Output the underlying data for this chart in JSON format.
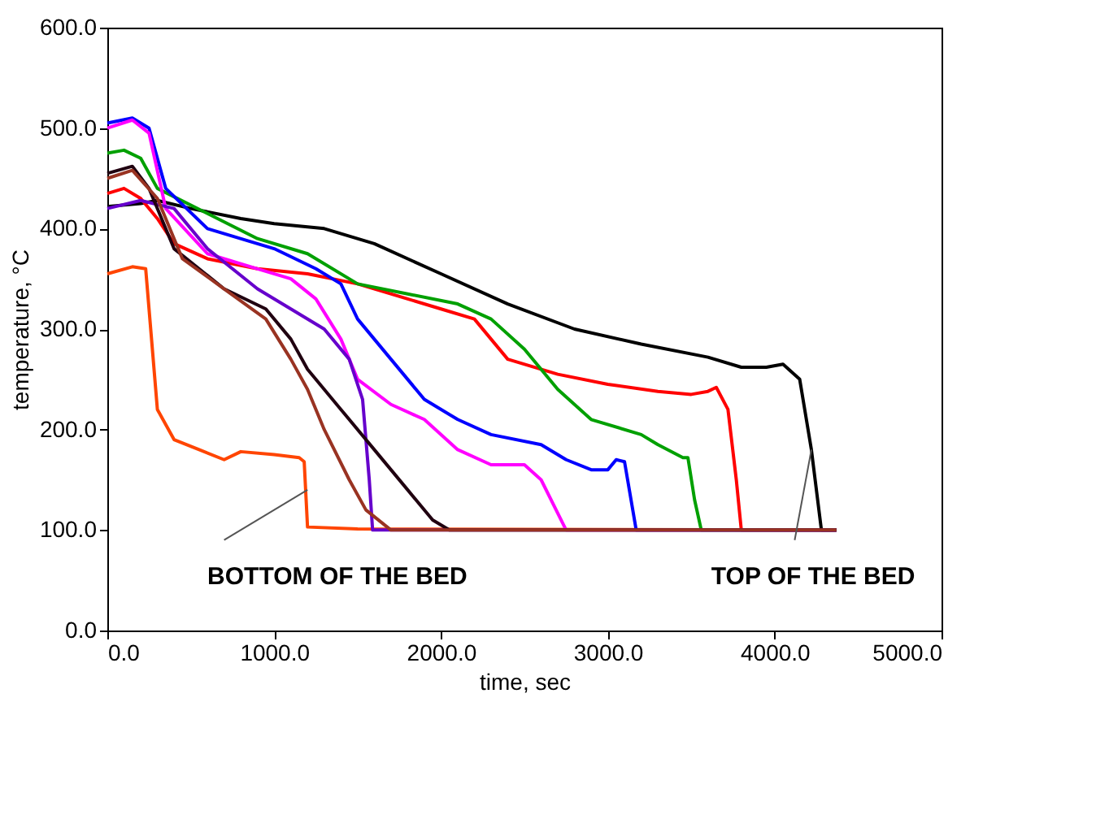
{
  "chart_data": {
    "type": "line",
    "xlabel": "time, sec",
    "ylabel": "temperature, °C",
    "xlim": [
      0,
      5000
    ],
    "ylim": [
      0,
      600
    ],
    "xticks": [
      {
        "value": 0,
        "label": "0.0"
      },
      {
        "value": 1000,
        "label": "1000.0"
      },
      {
        "value": 2000,
        "label": "2000.0"
      },
      {
        "value": 3000,
        "label": "3000.0"
      },
      {
        "value": 4000,
        "label": "4000.0"
      },
      {
        "value": 5000,
        "label": "5000.0"
      }
    ],
    "yticks": [
      {
        "value": 0,
        "label": "0.0"
      },
      {
        "value": 100,
        "label": "100.0"
      },
      {
        "value": 200,
        "label": "200.0"
      },
      {
        "value": 300,
        "label": "300.0"
      },
      {
        "value": 400,
        "label": "400.0"
      },
      {
        "value": 500,
        "label": "500.0"
      },
      {
        "value": 600,
        "label": "600.0"
      }
    ],
    "grid": false,
    "legend": false,
    "marker": "none",
    "line_style": "solid",
    "series": [
      {
        "color": "#ff4500",
        "x": [
          0,
          150,
          230,
          260,
          300,
          400,
          550,
          700,
          800,
          1000,
          1150,
          1180,
          1200,
          1500,
          4370
        ],
        "values": [
          355,
          362,
          360,
          300,
          220,
          190,
          180,
          170,
          178,
          175,
          172,
          168,
          103,
          101,
          100
        ]
      },
      {
        "color": "#000000",
        "x": [
          0,
          200,
          300,
          500,
          800,
          1000,
          1300,
          1600,
          2000,
          2400,
          2800,
          3200,
          3600,
          3800,
          3950,
          4050,
          4150,
          4220,
          4280,
          4370
        ],
        "values": [
          422,
          425,
          428,
          420,
          410,
          405,
          400,
          385,
          355,
          325,
          300,
          285,
          272,
          262,
          262,
          265,
          250,
          180,
          100,
          100
        ]
      },
      {
        "color": "#ff0000",
        "x": [
          0,
          100,
          200,
          300,
          400,
          600,
          900,
          1200,
          1500,
          1800,
          2000,
          2200,
          2400,
          2700,
          3000,
          3300,
          3500,
          3600,
          3650,
          3720,
          3770,
          3800,
          4370
        ],
        "values": [
          435,
          440,
          430,
          410,
          385,
          370,
          360,
          355,
          345,
          330,
          320,
          310,
          270,
          255,
          245,
          238,
          235,
          238,
          242,
          220,
          150,
          100,
          100
        ]
      },
      {
        "color": "#00a000",
        "x": [
          0,
          100,
          200,
          300,
          600,
          900,
          1200,
          1500,
          1800,
          2100,
          2300,
          2500,
          2700,
          2900,
          3200,
          3300,
          3450,
          3480,
          3520,
          3560,
          4370
        ],
        "values": [
          475,
          478,
          470,
          440,
          415,
          390,
          375,
          345,
          335,
          325,
          310,
          280,
          240,
          210,
          195,
          185,
          172,
          172,
          130,
          100,
          100
        ]
      },
      {
        "color": "#0000ff",
        "x": [
          0,
          150,
          250,
          350,
          600,
          1000,
          1250,
          1400,
          1500,
          1700,
          1900,
          2100,
          2300,
          2600,
          2750,
          2900,
          3000,
          3050,
          3100,
          3170,
          4370
        ],
        "values": [
          505,
          510,
          500,
          440,
          400,
          380,
          360,
          345,
          310,
          270,
          230,
          210,
          195,
          185,
          170,
          160,
          160,
          170,
          168,
          100,
          100
        ]
      },
      {
        "color": "#ff00ff",
        "x": [
          0,
          150,
          250,
          350,
          600,
          900,
          1100,
          1250,
          1400,
          1500,
          1700,
          1900,
          2100,
          2300,
          2500,
          2600,
          2750,
          4370
        ],
        "values": [
          500,
          508,
          495,
          420,
          375,
          360,
          350,
          330,
          290,
          250,
          225,
          210,
          180,
          165,
          165,
          150,
          100,
          100
        ]
      },
      {
        "color": "#6600cc",
        "x": [
          0,
          200,
          400,
          600,
          900,
          1100,
          1300,
          1450,
          1530,
          1570,
          1590,
          4370
        ],
        "values": [
          420,
          428,
          420,
          380,
          340,
          320,
          300,
          270,
          230,
          150,
          100,
          100
        ]
      },
      {
        "color": "#200010",
        "x": [
          0,
          150,
          250,
          400,
          700,
          950,
          1100,
          1200,
          1400,
          1600,
          1800,
          1950,
          2050,
          4370
        ],
        "values": [
          455,
          462,
          440,
          380,
          340,
          320,
          290,
          260,
          220,
          180,
          140,
          110,
          100,
          100
        ]
      },
      {
        "color": "#993322",
        "x": [
          0,
          150,
          300,
          450,
          700,
          950,
          1100,
          1200,
          1300,
          1450,
          1550,
          1700,
          4370
        ],
        "values": [
          450,
          458,
          430,
          370,
          340,
          310,
          270,
          240,
          200,
          150,
          120,
          100,
          100
        ]
      }
    ],
    "annotations": [
      {
        "text": "BOTTOM OF THE BED",
        "x": 1200,
        "y": 140
      },
      {
        "text": "TOP OF THE BED",
        "x": 4220,
        "y": 180
      }
    ]
  }
}
